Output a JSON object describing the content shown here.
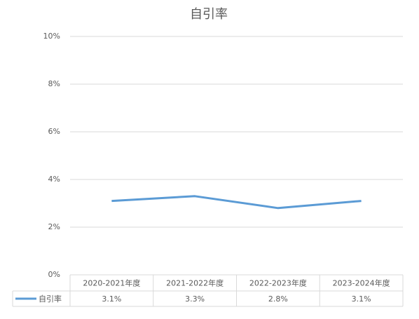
{
  "chart_data": {
    "type": "line",
    "title": "自引率",
    "categories": [
      "2020-2021年度",
      "2021-2022年度",
      "2022-2023年度",
      "2023-2024年度"
    ],
    "series": [
      {
        "name": "自引率",
        "color": "#5b9bd5",
        "values": [
          3.1,
          3.3,
          2.8,
          3.1
        ],
        "value_labels": [
          "3.1%",
          "3.3%",
          "2.8%",
          "3.1%"
        ]
      }
    ],
    "ylim": [
      0,
      10
    ],
    "yticks": [
      {
        "value": 0,
        "label": "0%"
      },
      {
        "value": 2,
        "label": "2%"
      },
      {
        "value": 4,
        "label": "4%"
      },
      {
        "value": 6,
        "label": "6%"
      },
      {
        "value": 8,
        "label": "8%"
      },
      {
        "value": 10,
        "label": "10%"
      }
    ],
    "grid": true
  }
}
